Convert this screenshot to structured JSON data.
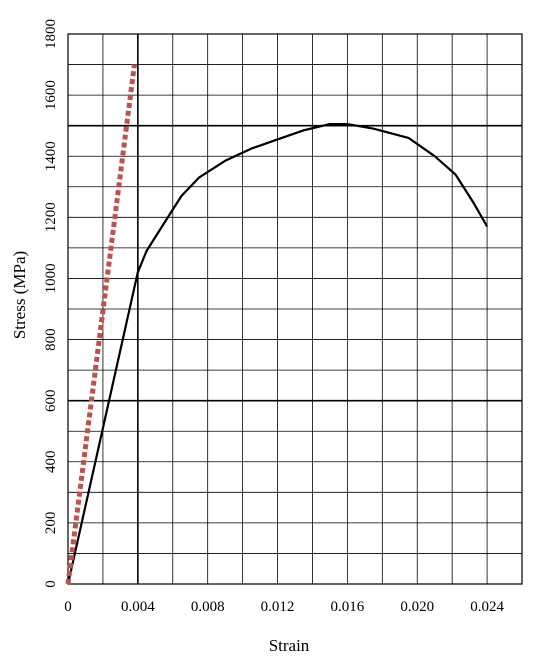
{
  "chart_data": {
    "type": "line",
    "xlabel": "Strain",
    "ylabel": "Stress (MPa)",
    "xlim": [
      0,
      0.026
    ],
    "ylim": [
      0,
      1800
    ],
    "x_tick_values": [
      0,
      0.004,
      0.008,
      0.012,
      0.016,
      0.02,
      0.024
    ],
    "x_tick_labels": [
      "0",
      "0.004",
      "0.008",
      "0.012",
      "0.016",
      "0.020",
      "0.024"
    ],
    "y_tick_values": [
      0,
      200,
      400,
      600,
      800,
      1000,
      1200,
      1400,
      1600,
      1800
    ],
    "y_tick_labels": [
      "0",
      "200",
      "400",
      "600",
      "800",
      "1000",
      "1200",
      "1400",
      "1600",
      "1800"
    ],
    "x_grid_step": 0.002,
    "y_grid_step": 100,
    "emphasized_gridlines": {
      "x": [
        0.004
      ],
      "y": [
        600,
        1500
      ]
    },
    "grid": true,
    "series": [
      {
        "style": "solid",
        "color": "#000000",
        "points": [
          [
            0,
            0
          ],
          [
            0.004,
            1020
          ],
          [
            0.0045,
            1090
          ],
          [
            0.0055,
            1180
          ],
          [
            0.0065,
            1270
          ],
          [
            0.0075,
            1330
          ],
          [
            0.009,
            1385
          ],
          [
            0.0105,
            1425
          ],
          [
            0.012,
            1455
          ],
          [
            0.0135,
            1485
          ],
          [
            0.015,
            1505
          ],
          [
            0.016,
            1505
          ],
          [
            0.0175,
            1490
          ],
          [
            0.0195,
            1460
          ],
          [
            0.021,
            1400
          ],
          [
            0.0222,
            1340
          ],
          [
            0.0232,
            1250
          ],
          [
            0.024,
            1170
          ]
        ]
      },
      {
        "style": "dotted",
        "color": "#c0504d",
        "points": [
          [
            0,
            0
          ],
          [
            0.0038,
            1700
          ]
        ]
      }
    ]
  }
}
